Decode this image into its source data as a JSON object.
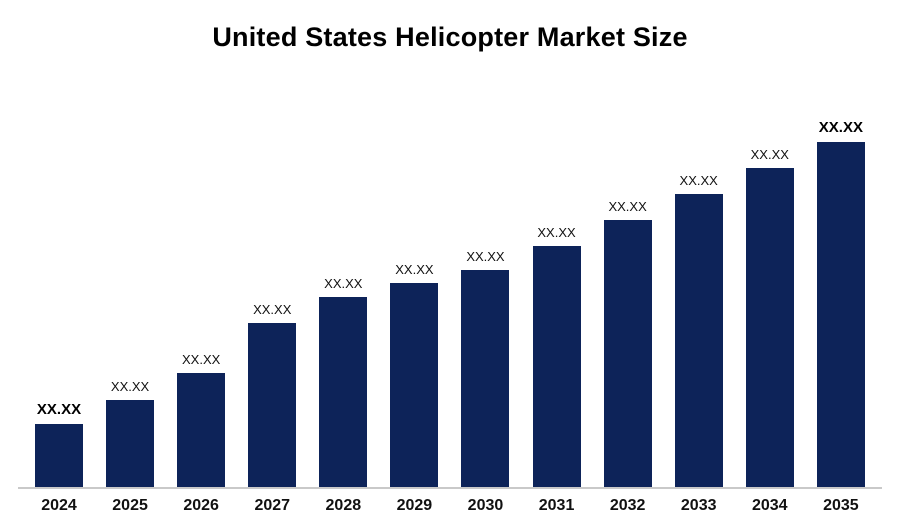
{
  "chart_data": {
    "type": "bar",
    "title": "United States Helicopter Market Size",
    "categories": [
      "2024",
      "2025",
      "2026",
      "2027",
      "2028",
      "2029",
      "2030",
      "2031",
      "2032",
      "2033",
      "2034",
      "2035"
    ],
    "values": [
      63,
      87,
      114,
      164,
      190,
      204,
      217,
      241,
      267,
      293,
      319,
      345
    ],
    "value_labels": [
      "XX.XX",
      "XX.XX",
      "XX.XX",
      "XX.XX",
      "XX.XX",
      "XX.XX",
      "XX.XX",
      "XX.XX",
      "XX.XX",
      "XX.XX",
      "XX.XX",
      "XX.XX"
    ],
    "emphasized_label_indices": [
      0,
      11
    ],
    "xlabel": "",
    "ylabel": "",
    "bar_color": "#0d2359",
    "axis_line_color": "#c9c9c9",
    "grid": false,
    "legend": false
  }
}
